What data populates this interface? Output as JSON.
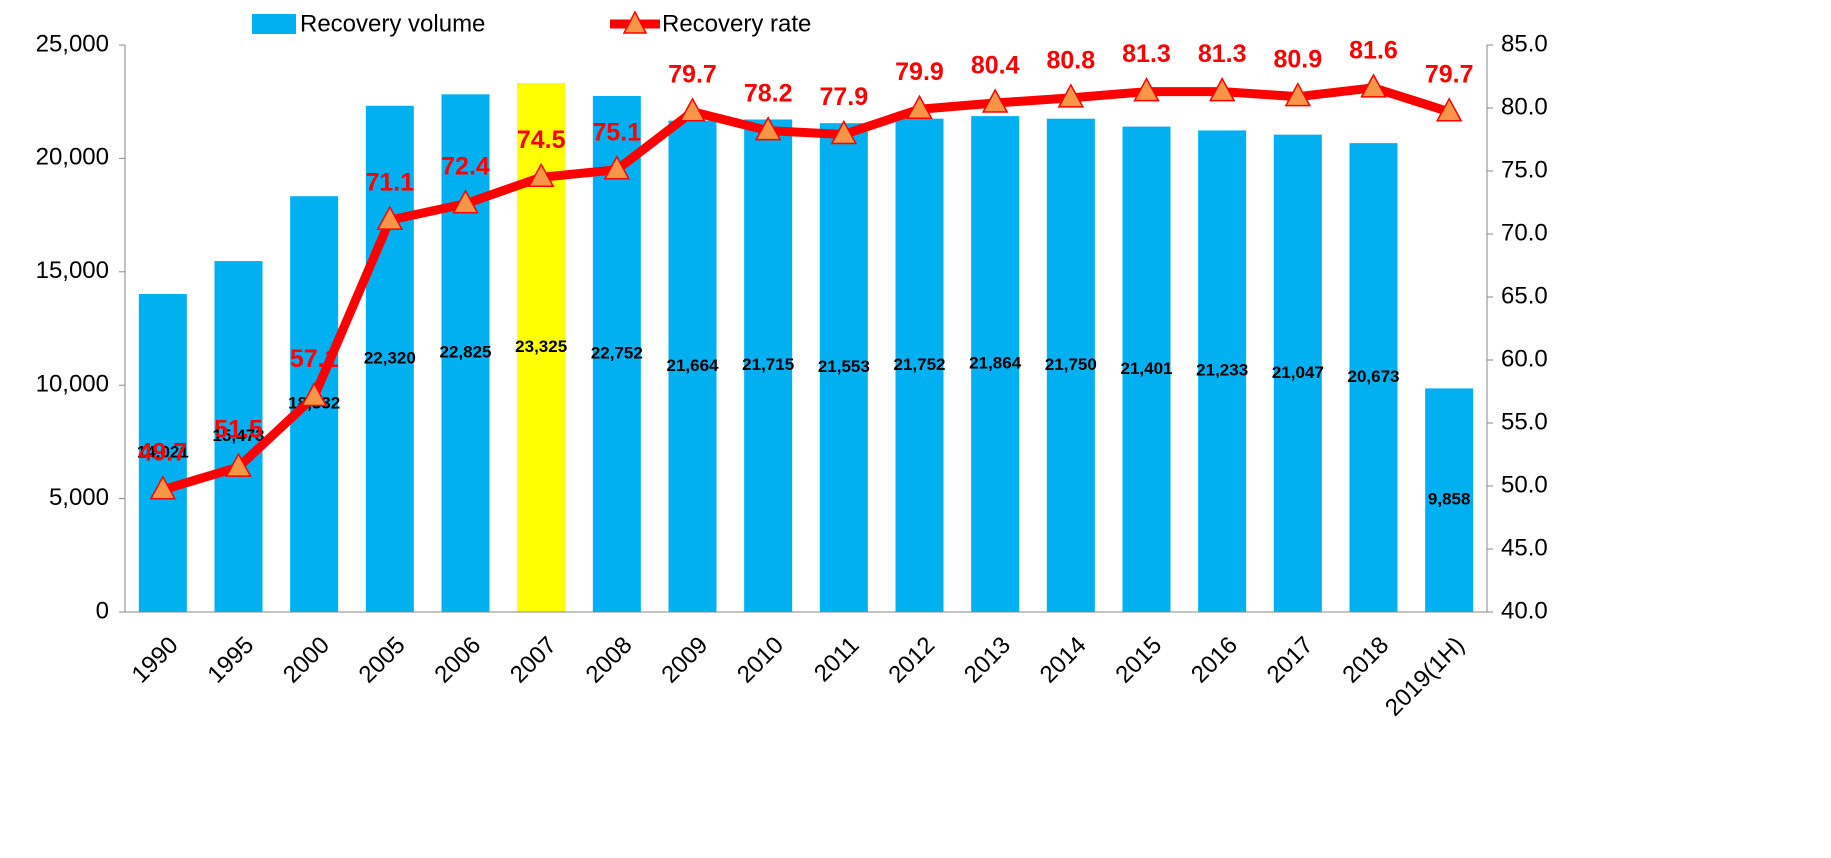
{
  "chart_data": {
    "type": "bar",
    "categories": [
      "1990",
      "1995",
      "2000",
      "2005",
      "2006",
      "2007",
      "2008",
      "2009",
      "2010",
      "2011",
      "2012",
      "2013",
      "2014",
      "2015",
      "2016",
      "2017",
      "2018",
      "2019(1H)"
    ],
    "series": [
      {
        "name": "Recovery volume",
        "type": "bar",
        "color": "#00b0f0",
        "colors": [
          "#00b0f0",
          "#00b0f0",
          "#00b0f0",
          "#00b0f0",
          "#00b0f0",
          "#ffff00",
          "#00b0f0",
          "#00b0f0",
          "#00b0f0",
          "#00b0f0",
          "#00b0f0",
          "#00b0f0",
          "#00b0f0",
          "#00b0f0",
          "#00b0f0",
          "#00b0f0",
          "#00b0f0",
          "#00b0f0"
        ],
        "values": [
          14021,
          15473,
          18332,
          22320,
          22825,
          23325,
          22752,
          21664,
          21715,
          21553,
          21752,
          21864,
          21750,
          21401,
          21233,
          21047,
          20673,
          9858
        ],
        "value_labels": [
          "14,021",
          "15,473",
          "18,332",
          "22,320",
          "22,825",
          "23,325",
          "22,752",
          "21,664",
          "21,715",
          "21,553",
          "21,752",
          "21,864",
          "21,750",
          "21,401",
          "21,233",
          "21,047",
          "20,673",
          "9,858"
        ]
      },
      {
        "name": "Recovery rate",
        "type": "line",
        "axis": "y2",
        "color": "#ff0000",
        "marker_color": "#f79646",
        "values": [
          49.7,
          51.5,
          57.1,
          71.1,
          72.4,
          74.5,
          75.1,
          79.7,
          78.2,
          77.9,
          79.9,
          80.4,
          80.8,
          81.3,
          81.3,
          80.9,
          81.6,
          79.7
        ]
      }
    ],
    "ylim": [
      0,
      25000
    ],
    "yticks": [
      0,
      {
        "value": 5000,
        "label": "5,000"
      },
      {
        "value": 10000,
        "label": "10,000"
      },
      {
        "value": 15000,
        "label": "15,000"
      },
      {
        "value": 20000,
        "label": "20,000"
      },
      {
        "value": 25000,
        "label": "25,000"
      }
    ],
    "y2lim": [
      40,
      85
    ],
    "y2ticks": [
      {
        "value": 40,
        "label": "40.0"
      },
      {
        "value": 45,
        "label": "45.0"
      },
      {
        "value": 50,
        "label": "50.0"
      },
      {
        "value": 55,
        "label": "55.0"
      },
      {
        "value": 60,
        "label": "60.0"
      },
      {
        "value": 65,
        "label": "65.0"
      },
      {
        "value": 70,
        "label": "70.0"
      },
      {
        "value": 75,
        "label": "75.0"
      },
      {
        "value": 80,
        "label": "80.0"
      },
      {
        "value": 85,
        "label": "85.0"
      }
    ],
    "grid": false,
    "legend": "top"
  }
}
